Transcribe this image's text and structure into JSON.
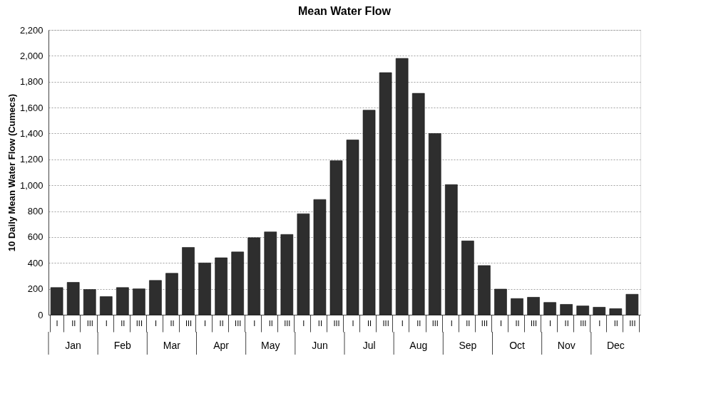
{
  "chart_data": {
    "type": "bar",
    "title": "Mean Water Flow",
    "ylabel": "10 Daily Mean Water Flow (Cumecs)",
    "categories": [
      "I",
      "II",
      "III",
      "I",
      "II",
      "III",
      "I",
      "II",
      "III",
      "I",
      "II",
      "III",
      "I",
      "II",
      "III",
      "I",
      "II",
      "III",
      "I",
      "II",
      "III",
      "I",
      "II",
      "III",
      "I",
      "II",
      "III",
      "I",
      "II",
      "III",
      "I",
      "II",
      "III",
      "I",
      "II",
      "III"
    ],
    "values": [
      210,
      250,
      195,
      140,
      210,
      200,
      265,
      320,
      520,
      400,
      440,
      485,
      595,
      640,
      620,
      780,
      890,
      1190,
      1350,
      1580,
      1870,
      1980,
      1710,
      1400,
      1005,
      570,
      380,
      198,
      125,
      135,
      95,
      80,
      68,
      58,
      47,
      158
    ],
    "color": "#2e2e2e",
    "ylim": [
      0,
      2200
    ],
    "yticks": [
      {
        "value": 0,
        "label": "0"
      },
      {
        "value": 200,
        "label": "200"
      },
      {
        "value": 400,
        "label": "400"
      },
      {
        "value": 600,
        "label": "600"
      },
      {
        "value": 800,
        "label": "800"
      },
      {
        "value": 1000,
        "label": "1,000"
      },
      {
        "value": 1200,
        "label": "1,200"
      },
      {
        "value": 1400,
        "label": "1,400"
      },
      {
        "value": 1600,
        "label": "1,600"
      },
      {
        "value": 1800,
        "label": "1,800"
      },
      {
        "value": 2000,
        "label": "2,000"
      },
      {
        "value": 2200,
        "label": "2,200"
      }
    ],
    "grid": "y",
    "annotations": [
      "Jan",
      "Feb",
      "Mar",
      "Apr",
      "May",
      "Jun",
      "Jul",
      "Aug",
      "Sep",
      "Oct",
      "Nov",
      "Dec"
    ]
  }
}
